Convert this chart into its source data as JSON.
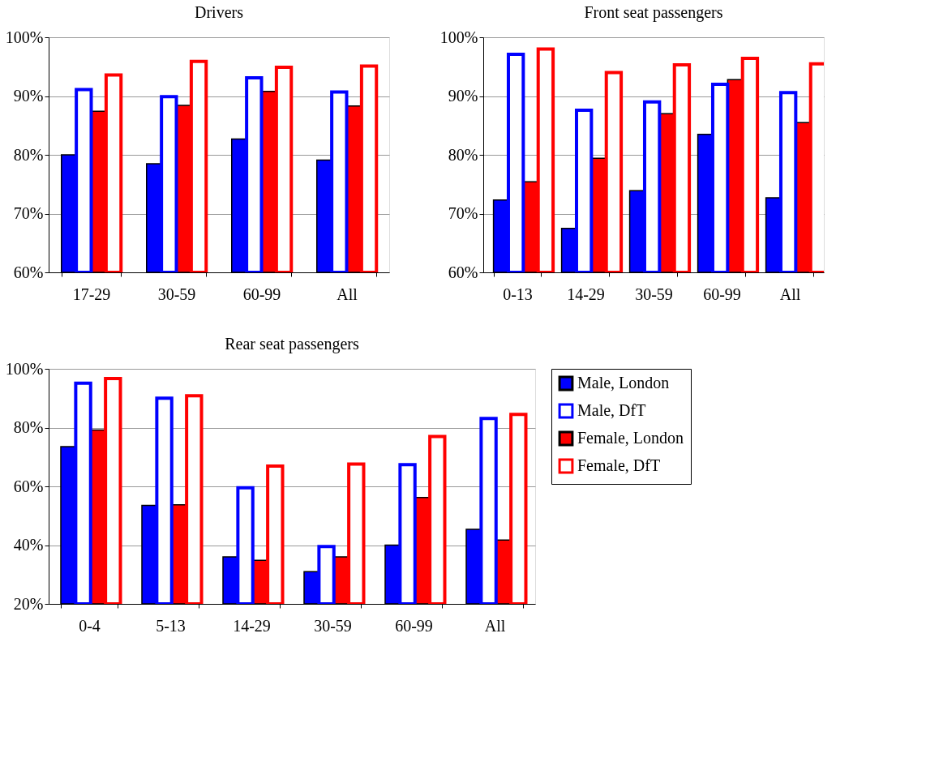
{
  "chart_data": [
    {
      "type": "bar",
      "title": "Drivers",
      "categories": [
        "17-29",
        "30-59",
        "60-99",
        "All"
      ],
      "ylim": [
        60,
        100
      ],
      "yticks": [
        {
          "value": 60,
          "label": "60%"
        },
        {
          "value": 70,
          "label": "70%"
        },
        {
          "value": 80,
          "label": "80%"
        },
        {
          "value": 90,
          "label": "90%"
        },
        {
          "value": 100,
          "label": "100%"
        }
      ],
      "grid": "y",
      "series": [
        {
          "color": "#0000ff",
          "values": [
            80.0,
            78.5,
            82.7,
            79.1
          ]
        },
        {
          "color": "#0000ff",
          "values": [
            91.1,
            89.9,
            93.1,
            90.7
          ]
        },
        {
          "color": "#ff0000",
          "values": [
            87.4,
            88.4,
            90.8,
            88.3
          ]
        },
        {
          "color": "#ff0000",
          "values": [
            93.6,
            95.9,
            94.9,
            95.1
          ]
        }
      ]
    },
    {
      "type": "bar",
      "title": "Front seat passengers",
      "categories": [
        "0-13",
        "14-29",
        "30-59",
        "60-99",
        "All"
      ],
      "ylim": [
        60,
        100
      ],
      "yticks": [
        {
          "value": 60,
          "label": "60%"
        },
        {
          "value": 70,
          "label": "70%"
        },
        {
          "value": 80,
          "label": "80%"
        },
        {
          "value": 90,
          "label": "90%"
        },
        {
          "value": 100,
          "label": "100%"
        }
      ],
      "grid": "y",
      "series": [
        {
          "color": "#0000ff",
          "values": [
            72.3,
            67.5,
            73.9,
            83.5,
            72.7
          ]
        },
        {
          "color": "#0000ff",
          "values": [
            97.1,
            87.6,
            89.0,
            92.0,
            90.6
          ]
        },
        {
          "color": "#ff0000",
          "values": [
            75.4,
            79.4,
            87.0,
            92.8,
            85.5
          ]
        },
        {
          "color": "#ff0000",
          "values": [
            98.0,
            94.0,
            95.3,
            96.4,
            95.5
          ]
        }
      ]
    },
    {
      "type": "bar",
      "title": "Rear seat passengers",
      "categories": [
        "0-4",
        "5-13",
        "14-29",
        "30-59",
        "60-99",
        "All"
      ],
      "ylim": [
        20,
        100
      ],
      "yticks": [
        {
          "value": 20,
          "label": "20%"
        },
        {
          "value": 40,
          "label": "40%"
        },
        {
          "value": 60,
          "label": "60%"
        },
        {
          "value": 80,
          "label": "80%"
        },
        {
          "value": 100,
          "label": "100%"
        }
      ],
      "grid": "y",
      "legend": "right",
      "series": [
        {
          "name": "Male, London",
          "color": "#0000ff",
          "values": [
            73.5,
            53.5,
            36.0,
            31.0,
            40.0,
            45.4
          ]
        },
        {
          "name": "Male, DfT",
          "color": "#0000ff",
          "values": [
            95.1,
            90.0,
            59.5,
            39.5,
            67.4,
            83.1
          ]
        },
        {
          "name": "Female, London",
          "color": "#ff0000",
          "values": [
            79.2,
            53.7,
            34.8,
            36.0,
            56.2,
            41.7
          ]
        },
        {
          "name": "Female, DfT",
          "color": "#ff0000",
          "values": [
            96.7,
            90.8,
            66.9,
            67.6,
            77.0,
            84.5
          ]
        }
      ]
    }
  ]
}
